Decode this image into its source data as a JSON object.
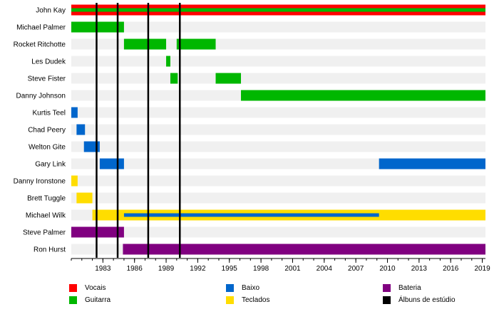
{
  "chart_data": {
    "type": "timeline",
    "x_range": [
      1980.0,
      2019.3
    ],
    "x_ticks": [
      "1983",
      "1986",
      "1989",
      "1992",
      "1995",
      "1998",
      "2001",
      "2004",
      "2007",
      "2010",
      "2013",
      "2016",
      "2019"
    ],
    "roles": [
      {
        "key": "vocais",
        "label": "Vocais",
        "color": "#ff0000"
      },
      {
        "key": "guitarra",
        "label": "Guitarra",
        "color": "#00b700"
      },
      {
        "key": "baixo",
        "label": "Baixo",
        "color": "#0066cc"
      },
      {
        "key": "teclados",
        "label": "Teclados",
        "color": "#ffdd00"
      },
      {
        "key": "bateria",
        "label": "Bateria",
        "color": "#800080"
      },
      {
        "key": "albuns",
        "label": "Álbuns de estúdio",
        "color": "#000000"
      }
    ],
    "members": [
      {
        "name": "John Kay",
        "spans": [
          {
            "role": "vocais",
            "start": 1980.0,
            "end": 2019.3
          },
          {
            "role": "guitarra",
            "start": 1980.0,
            "end": 2019.3,
            "inner": true
          }
        ]
      },
      {
        "name": "Michael Palmer",
        "spans": [
          {
            "role": "guitarra",
            "start": 1980.0,
            "end": 1985.0
          }
        ]
      },
      {
        "name": "Rocket Ritchotte",
        "spans": [
          {
            "role": "guitarra",
            "start": 1985.0,
            "end": 1989.0
          },
          {
            "role": "guitarra",
            "start": 1990.0,
            "end": 1993.7
          }
        ]
      },
      {
        "name": "Les Dudek",
        "spans": [
          {
            "role": "guitarra",
            "start": 1989.0,
            "end": 1989.4
          }
        ]
      },
      {
        "name": "Steve Fister",
        "spans": [
          {
            "role": "guitarra",
            "start": 1989.4,
            "end": 1990.1
          },
          {
            "role": "guitarra",
            "start": 1993.7,
            "end": 1996.1
          }
        ]
      },
      {
        "name": "Danny Johnson",
        "spans": [
          {
            "role": "guitarra",
            "start": 1996.1,
            "end": 2019.3
          }
        ]
      },
      {
        "name": "Kurtis Teel",
        "spans": [
          {
            "role": "baixo",
            "start": 1980.0,
            "end": 1980.6
          }
        ]
      },
      {
        "name": "Chad Peery",
        "spans": [
          {
            "role": "baixo",
            "start": 1980.5,
            "end": 1981.3
          }
        ]
      },
      {
        "name": "Welton Gite",
        "spans": [
          {
            "role": "baixo",
            "start": 1981.2,
            "end": 1982.7
          }
        ]
      },
      {
        "name": "Gary Link",
        "spans": [
          {
            "role": "baixo",
            "start": 1982.7,
            "end": 1985.0
          },
          {
            "role": "baixo",
            "start": 2009.2,
            "end": 2019.3
          }
        ]
      },
      {
        "name": "Danny Ironstone",
        "spans": [
          {
            "role": "teclados",
            "start": 1980.0,
            "end": 1980.6
          }
        ]
      },
      {
        "name": "Brett Tuggle",
        "spans": [
          {
            "role": "teclados",
            "start": 1980.5,
            "end": 1982.0
          }
        ]
      },
      {
        "name": "Michael Wilk",
        "spans": [
          {
            "role": "teclados",
            "start": 1982.0,
            "end": 2019.3
          },
          {
            "role": "baixo",
            "start": 1985.0,
            "end": 2009.2,
            "inner": true
          }
        ]
      },
      {
        "name": "Steve Palmer",
        "spans": [
          {
            "role": "bateria",
            "start": 1980.0,
            "end": 1985.0
          }
        ]
      },
      {
        "name": "Ron Hurst",
        "spans": [
          {
            "role": "bateria",
            "start": 1984.9,
            "end": 2019.3
          }
        ]
      }
    ],
    "albums": [
      1982.4,
      1984.4,
      1987.3,
      1990.3
    ]
  },
  "legend_columns": [
    [
      "vocais",
      "guitarra"
    ],
    [
      "baixo",
      "teclados"
    ],
    [
      "bateria",
      "albuns"
    ]
  ]
}
